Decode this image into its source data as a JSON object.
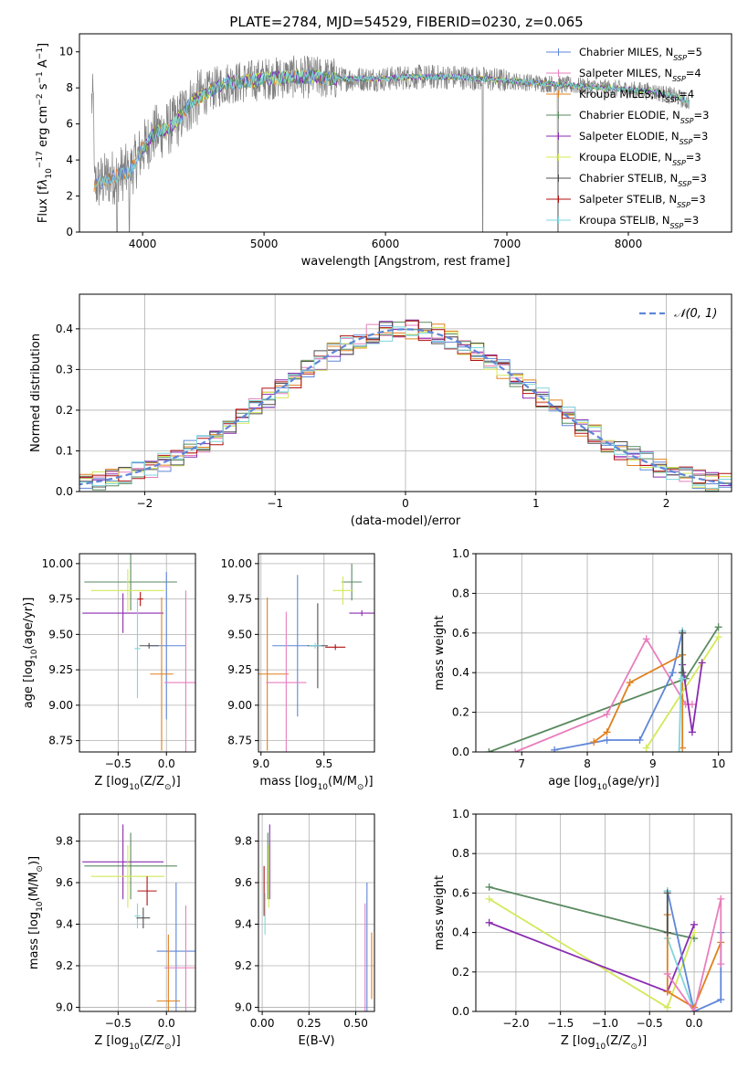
{
  "figure": {
    "title": "PLATE=2784, MJD=54529, FIBERID=0230, z=0.065"
  },
  "colors": {
    "chabrier_miles": "#5f86d8",
    "salpeter_miles": "#e87ebd",
    "kroupa_miles": "#e0801e",
    "chabrier_elodie": "#5a8a60",
    "salpeter_elodie": "#8a2bb0",
    "kroupa_elodie": "#d4e85a",
    "chabrier_stelib": "#505050",
    "salpeter_stelib": "#b01010",
    "kroupa_stelib": "#7fd6dc",
    "data_gray": "#808080",
    "normal": "#5f86d8"
  },
  "chart_data": [
    {
      "id": "spectrum",
      "type": "line",
      "xlabel": "wavelength [Angstrom, rest frame]",
      "ylabel_parts": [
        "Flux [f",
        "λ",
        "10",
        "−17",
        " erg cm",
        "−2",
        " s",
        "−1",
        " A",
        "−1",
        "]"
      ],
      "xlim": [
        3480,
        8850
      ],
      "ylim": [
        0,
        11
      ],
      "xticks": [
        4000,
        5000,
        6000,
        7000,
        8000
      ],
      "yticks": [
        0,
        2,
        4,
        6,
        8,
        10
      ],
      "legend_position": "top-right",
      "legend": [
        {
          "name": "Chabrier MILES, N",
          "sub": "SSP",
          "suffix": "=5",
          "color_key": "chabrier_miles"
        },
        {
          "name": "Salpeter MILES, N",
          "sub": "SSP",
          "suffix": "=4",
          "color_key": "salpeter_miles"
        },
        {
          "name": "Kroupa MILES, N",
          "sub": "SSP",
          "suffix": "=4",
          "color_key": "kroupa_miles"
        },
        {
          "name": "Chabrier ELODIE, N",
          "sub": "SSP",
          "suffix": "=3",
          "color_key": "chabrier_elodie"
        },
        {
          "name": "Salpeter ELODIE, N",
          "sub": "SSP",
          "suffix": "=3",
          "color_key": "salpeter_elodie"
        },
        {
          "name": "Kroupa ELODIE, N",
          "sub": "SSP",
          "suffix": "=3",
          "color_key": "kroupa_elodie"
        },
        {
          "name": "Chabrier STELIB, N",
          "sub": "SSP",
          "suffix": "=3",
          "color_key": "chabrier_stelib"
        },
        {
          "name": "Salpeter STELIB, N",
          "sub": "SSP",
          "suffix": "=3",
          "color_key": "salpeter_stelib"
        },
        {
          "name": "Kroupa STELIB, N",
          "sub": "SSP",
          "suffix": "=3",
          "color_key": "kroupa_stelib"
        }
      ],
      "continuum": {
        "x": [
          3600,
          3700,
          3800,
          3900,
          4000,
          4100,
          4200,
          4300,
          4400,
          4500,
          4600,
          4700,
          4800,
          4900,
          5000,
          5200,
          5400,
          5600,
          5800,
          6000,
          6200,
          6400,
          6600,
          6800,
          7000,
          7200,
          7400,
          7600,
          7800,
          8000,
          8200,
          8400,
          8500
        ],
        "y": [
          2.6,
          2.9,
          3.2,
          3.4,
          4.6,
          5.5,
          5.7,
          6.3,
          7.2,
          7.6,
          8.0,
          8.3,
          8.3,
          8.4,
          8.5,
          8.6,
          8.6,
          8.5,
          8.5,
          8.5,
          8.6,
          8.6,
          8.6,
          8.5,
          8.4,
          8.3,
          8.2,
          8.1,
          8.0,
          7.9,
          7.8,
          7.5,
          7.2
        ]
      },
      "dips": [
        {
          "x": 3790,
          "y": 0.0
        },
        {
          "x": 3890,
          "y": 0.0
        },
        {
          "x": 6800,
          "y": 0.0
        },
        {
          "x": 7420,
          "y": 0.0
        }
      ]
    },
    {
      "id": "residuals",
      "type": "line",
      "xlabel": "(data-model)/error",
      "ylabel": "Normed distribution",
      "xlim": [
        -2.5,
        2.5
      ],
      "ylim": [
        0,
        0.485
      ],
      "xticks": [
        -2,
        -1,
        0,
        1,
        2
      ],
      "xtick_labels": [
        "−2",
        "−1",
        "0",
        "1",
        "2"
      ],
      "yticks": [
        0.0,
        0.1,
        0.2,
        0.3,
        0.4
      ],
      "ytick_labels": [
        "0.0",
        "0.1",
        "0.2",
        "0.3",
        "0.4"
      ],
      "legend_position": "top-right",
      "legend": [
        {
          "name": "𝒩(0, 1)",
          "color_key": "normal"
        }
      ],
      "bin_width": 0.1
    },
    {
      "id": "age_vs_Z",
      "type": "scatter",
      "xlabel_parts": [
        "Z [log",
        "10",
        "(Z/Z",
        "⊙",
        ")]"
      ],
      "ylabel_parts": [
        "age  [log",
        "10",
        "(age/yr)]"
      ],
      "xlim": [
        -0.9,
        0.3
      ],
      "ylim": [
        8.67,
        10.07
      ],
      "xticks": [
        -0.5,
        0.0
      ],
      "xtick_labels": [
        "−0.5",
        "0.0"
      ],
      "yticks": [
        8.75,
        9.0,
        9.25,
        9.5,
        9.75,
        10.0
      ],
      "ytick_labels": [
        "8.75",
        "9.00",
        "9.25",
        "9.50",
        "9.75",
        "10.00"
      ],
      "points": [
        {
          "color_key": "chabrier_elodie",
          "x": -0.37,
          "xerr": 0.48,
          "y": 9.87,
          "yerr": 0.2
        },
        {
          "color_key": "kroupa_elodie",
          "x": -0.4,
          "xerr": 0.38,
          "y": 9.81,
          "yerr": 0.15
        },
        {
          "color_key": "salpeter_elodie",
          "x": -0.45,
          "xerr": 0.42,
          "y": 9.65,
          "yerr": 0.14
        },
        {
          "color_key": "chabrier_miles",
          "x": 0.0,
          "xerr": 0.2,
          "y": 9.42,
          "yerr": 0.52
        },
        {
          "color_key": "kroupa_stelib",
          "x": -0.3,
          "xerr": 0.03,
          "y": 9.4,
          "yerr": 0.35
        },
        {
          "color_key": "chabrier_stelib",
          "x": -0.18,
          "xerr": 0.1,
          "y": 9.42,
          "yerr": 0.02
        },
        {
          "color_key": "kroupa_miles",
          "x": -0.05,
          "xerr": 0.12,
          "y": 9.22,
          "yerr": 0.54
        },
        {
          "color_key": "salpeter_miles",
          "x": 0.2,
          "xerr": 0.22,
          "y": 9.16,
          "yerr": 0.65
        },
        {
          "color_key": "salpeter_stelib",
          "x": -0.27,
          "xerr": 0.03,
          "y": 9.75,
          "yerr": 0.05
        }
      ]
    },
    {
      "id": "age_vs_mass",
      "type": "scatter",
      "xlabel_parts": [
        "mass [log",
        "10",
        "(M/M",
        "⊙",
        ")]"
      ],
      "xlim": [
        8.98,
        9.9
      ],
      "ylim": [
        8.67,
        10.07
      ],
      "xticks": [
        9.0,
        9.5
      ],
      "xtick_labels": [
        "9.0",
        "9.5"
      ],
      "yticks": [
        8.75,
        9.0,
        9.25,
        9.5,
        9.75,
        10.0
      ],
      "ytick_labels": [
        "8.75",
        "9.00",
        "9.25",
        "9.50",
        "9.75",
        "10.00"
      ],
      "points": [
        {
          "color_key": "chabrier_elodie",
          "x": 9.72,
          "xerr": 0.08,
          "y": 9.87,
          "yerr": 0.13
        },
        {
          "color_key": "kroupa_elodie",
          "x": 9.65,
          "xerr": 0.08,
          "y": 9.81,
          "yerr": 0.1
        },
        {
          "color_key": "salpeter_elodie",
          "x": 9.8,
          "xerr": 0.1,
          "y": 9.65,
          "yerr": 0.02
        },
        {
          "color_key": "chabrier_miles",
          "x": 9.29,
          "xerr": 0.2,
          "y": 9.42,
          "yerr": 0.5
        },
        {
          "color_key": "chabrier_stelib",
          "x": 9.45,
          "xerr": 0.08,
          "y": 9.42,
          "yerr": 0.3
        },
        {
          "color_key": "kroupa_stelib",
          "x": 9.43,
          "xerr": 0.05,
          "y": 9.42,
          "yerr": 0.02
        },
        {
          "color_key": "salpeter_stelib",
          "x": 9.59,
          "xerr": 0.08,
          "y": 9.41,
          "yerr": 0.02
        },
        {
          "color_key": "kroupa_miles",
          "x": 9.05,
          "xerr": 0.17,
          "y": 9.22,
          "yerr": 0.54
        },
        {
          "color_key": "salpeter_miles",
          "x": 9.2,
          "xerr": 0.16,
          "y": 9.16,
          "yerr": 0.5
        }
      ]
    },
    {
      "id": "weight_vs_age",
      "type": "line",
      "xlabel_parts": [
        "age  [log",
        "10",
        "(age/yr)]"
      ],
      "ylabel": "mass weight",
      "xlim": [
        6.3,
        10.2
      ],
      "ylim": [
        0,
        1
      ],
      "xticks": [
        7,
        8,
        9,
        10
      ],
      "yticks": [
        0.0,
        0.2,
        0.4,
        0.6,
        0.8,
        1.0
      ],
      "ytick_labels": [
        "0.0",
        "0.2",
        "0.4",
        "0.6",
        "0.8",
        "1.0"
      ],
      "series": [
        {
          "color_key": "chabrier_elodie",
          "x": [
            6.5,
            9.5,
            10.0
          ],
          "y": [
            0.0,
            0.37,
            0.63
          ]
        },
        {
          "color_key": "salpeter_miles",
          "x": [
            6.9,
            8.3,
            8.9,
            9.5,
            9.6
          ],
          "y": [
            0.0,
            0.19,
            0.57,
            0.24,
            0.24
          ]
        },
        {
          "color_key": "chabrier_miles",
          "x": [
            7.5,
            8.3,
            8.8,
            9.3,
            9.45
          ],
          "y": [
            0.01,
            0.06,
            0.06,
            0.4,
            0.61
          ]
        },
        {
          "color_key": "kroupa_miles",
          "x": [
            8.1,
            8.3,
            8.65,
            9.45,
            9.45
          ],
          "y": [
            0.05,
            0.1,
            0.35,
            0.49,
            0.02
          ]
        },
        {
          "color_key": "kroupa_elodie",
          "x": [
            8.9,
            10.0
          ],
          "y": [
            0.02,
            0.58
          ]
        },
        {
          "color_key": "salpeter_elodie",
          "x": [
            9.45,
            9.6,
            9.75
          ],
          "y": [
            0.44,
            0.1,
            0.45
          ]
        },
        {
          "color_key": "kroupa_stelib",
          "x": [
            9.4,
            9.45,
            9.45
          ],
          "y": [
            0.0,
            0.61,
            0.37
          ]
        },
        {
          "color_key": "chabrier_stelib",
          "x": [
            9.45,
            9.45
          ],
          "y": [
            0.4,
            0.6
          ]
        }
      ]
    },
    {
      "id": "mass_vs_Z",
      "type": "scatter",
      "xlabel_parts": [
        "Z [log",
        "10",
        "(Z/Z",
        "⊙",
        ")]"
      ],
      "ylabel_parts": [
        "mass [log",
        "10",
        "(M/M",
        "⊙",
        ")]"
      ],
      "xlim": [
        -0.9,
        0.3
      ],
      "ylim": [
        8.98,
        9.93
      ],
      "xticks": [
        -0.5,
        0.0
      ],
      "xtick_labels": [
        "−0.5",
        "0.0"
      ],
      "yticks": [
        9.0,
        9.2,
        9.4,
        9.6,
        9.8
      ],
      "ytick_labels": [
        "9.0",
        "9.2",
        "9.4",
        "9.6",
        "9.8"
      ],
      "points": [
        {
          "color_key": "chabrier_elodie",
          "x": -0.37,
          "xerr": 0.48,
          "y": 9.68,
          "yerr": 0.16
        },
        {
          "color_key": "salpeter_elodie",
          "x": -0.45,
          "xerr": 0.42,
          "y": 9.7,
          "yerr": 0.18
        },
        {
          "color_key": "kroupa_elodie",
          "x": -0.4,
          "xerr": 0.38,
          "y": 9.63,
          "yerr": 0.15
        },
        {
          "color_key": "salpeter_stelib",
          "x": -0.2,
          "xerr": 0.1,
          "y": 9.56,
          "yerr": 0.07
        },
        {
          "color_key": "kroupa_stelib",
          "x": -0.3,
          "xerr": 0.03,
          "y": 9.44,
          "yerr": 0.06
        },
        {
          "color_key": "chabrier_stelib",
          "x": -0.24,
          "xerr": 0.07,
          "y": 9.43,
          "yerr": 0.05
        },
        {
          "color_key": "chabrier_miles",
          "x": 0.1,
          "xerr": 0.2,
          "y": 9.27,
          "yerr": 0.33
        },
        {
          "color_key": "kroupa_miles",
          "x": 0.02,
          "xerr": 0.12,
          "y": 9.03,
          "yerr": 0.32
        },
        {
          "color_key": "salpeter_miles",
          "x": 0.2,
          "xerr": 0.22,
          "y": 9.19,
          "yerr": 0.3
        }
      ]
    },
    {
      "id": "mass_vs_ebv",
      "type": "scatter",
      "xlabel": "E(B-V)",
      "xlim": [
        -0.02,
        0.6
      ],
      "ylim": [
        8.98,
        9.93
      ],
      "xticks": [
        0.0,
        0.25,
        0.5
      ],
      "xtick_labels": [
        "0.00",
        "0.25",
        "0.50"
      ],
      "yticks": [
        9.0,
        9.2,
        9.4,
        9.6,
        9.8
      ],
      "ytick_labels": [
        "9.0",
        "9.2",
        "9.4",
        "9.6",
        "9.8"
      ],
      "points": [
        {
          "color_key": "chabrier_elodie",
          "x": 0.03,
          "xerr": 0.0,
          "y": 9.68,
          "yerr": 0.16
        },
        {
          "color_key": "salpeter_elodie",
          "x": 0.04,
          "xerr": 0.0,
          "y": 9.7,
          "yerr": 0.18
        },
        {
          "color_key": "kroupa_elodie",
          "x": 0.035,
          "xerr": 0.0,
          "y": 9.63,
          "yerr": 0.15
        },
        {
          "color_key": "salpeter_stelib",
          "x": 0.01,
          "xerr": 0.0,
          "y": 9.56,
          "yerr": 0.12
        },
        {
          "color_key": "kroupa_stelib",
          "x": 0.015,
          "xerr": 0.0,
          "y": 9.45,
          "yerr": 0.1
        },
        {
          "color_key": "chabrier_miles",
          "x": 0.56,
          "xerr": 0.0,
          "y": 9.27,
          "yerr": 0.33
        },
        {
          "color_key": "kroupa_miles",
          "x": 0.585,
          "xerr": 0.0,
          "y": 9.2,
          "yerr": 0.16
        },
        {
          "color_key": "salpeter_miles",
          "x": 0.55,
          "xerr": 0.0,
          "y": 9.23,
          "yerr": 0.27
        }
      ]
    },
    {
      "id": "weight_vs_Z",
      "type": "line",
      "xlabel_parts": [
        "Z [log",
        "10",
        "(Z/Z",
        "⊙",
        ")]"
      ],
      "ylabel": "mass weight",
      "xlim": [
        -2.45,
        0.42
      ],
      "ylim": [
        0,
        1
      ],
      "xticks": [
        -2.0,
        -1.5,
        -1.0,
        -0.5,
        0.0
      ],
      "xtick_labels": [
        "−2.0",
        "−1.5",
        "−1.0",
        "−0.5",
        "0.0"
      ],
      "yticks": [
        0.0,
        0.2,
        0.4,
        0.6,
        0.8,
        1.0
      ],
      "ytick_labels": [
        "0.0",
        "0.2",
        "0.4",
        "0.6",
        "0.8",
        "1.0"
      ],
      "series": [
        {
          "color_key": "chabrier_elodie",
          "x": [
            -2.3,
            -0.3,
            0.0
          ],
          "y": [
            0.63,
            0.4,
            0.37
          ]
        },
        {
          "color_key": "kroupa_elodie",
          "x": [
            -2.3,
            -0.3,
            0.0
          ],
          "y": [
            0.57,
            0.02,
            0.4
          ]
        },
        {
          "color_key": "salpeter_elodie",
          "x": [
            -2.3,
            -0.3,
            0.0
          ],
          "y": [
            0.45,
            0.1,
            0.44
          ]
        },
        {
          "color_key": "chabrier_miles",
          "x": [
            -0.3,
            0.0,
            0.3,
            0.3
          ],
          "y": [
            0.61,
            0.0,
            0.06,
            0.4
          ]
        },
        {
          "color_key": "kroupa_stelib",
          "x": [
            -0.3,
            -0.3,
            0.0
          ],
          "y": [
            0.61,
            0.37,
            0.0
          ]
        },
        {
          "color_key": "kroupa_miles",
          "x": [
            -0.3,
            -0.3,
            0.0,
            0.3
          ],
          "y": [
            0.49,
            0.1,
            0.02,
            0.35
          ]
        },
        {
          "color_key": "salpeter_miles",
          "x": [
            -0.3,
            0.0,
            0.3,
            0.3
          ],
          "y": [
            0.19,
            0.0,
            0.57,
            0.24
          ]
        },
        {
          "color_key": "chabrier_stelib",
          "x": [
            -0.3,
            -0.3
          ],
          "y": [
            0.4,
            0.6
          ]
        }
      ]
    }
  ]
}
